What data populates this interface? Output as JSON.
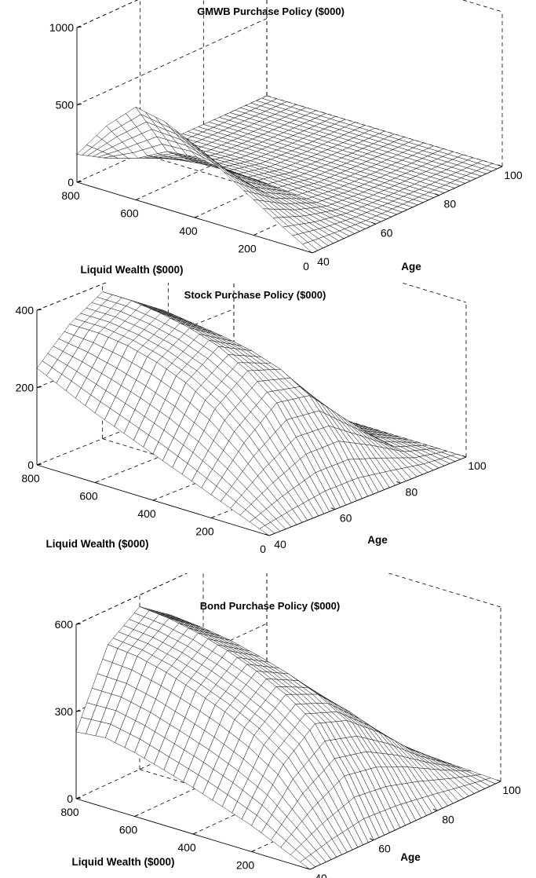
{
  "chart_data": [
    {
      "type": "surface",
      "title": "GMWB Purchase  Policy ($000)",
      "xlabel": "Liquid Wealth ($000)",
      "ylabel": "Age",
      "x_ticks": [
        "800",
        "600",
        "400",
        "200",
        "0"
      ],
      "y_ticks": [
        "40",
        "60",
        "80",
        "100"
      ],
      "z_ticks": [
        "0",
        "500",
        "1000"
      ],
      "xlim": [
        0,
        800
      ],
      "ylim": [
        40,
        100
      ],
      "zlim": [
        0,
        1000
      ],
      "grid": true,
      "wealth": [
        800,
        700,
        600,
        500,
        400,
        300,
        200,
        100,
        0
      ],
      "age": [
        40,
        50,
        60,
        70,
        80,
        90,
        100
      ],
      "z": [
        [
          180,
          60,
          12,
          3,
          1,
          0,
          0
        ],
        [
          420,
          120,
          25,
          6,
          1,
          0,
          0
        ],
        [
          600,
          220,
          50,
          10,
          2,
          0,
          0
        ],
        [
          560,
          240,
          60,
          12,
          2,
          0,
          0
        ],
        [
          470,
          210,
          55,
          10,
          2,
          0,
          0
        ],
        [
          350,
          160,
          40,
          8,
          1,
          0,
          0
        ],
        [
          230,
          110,
          25,
          5,
          1,
          0,
          0
        ],
        [
          110,
          50,
          12,
          3,
          0,
          0,
          0
        ],
        [
          0,
          0,
          0,
          0,
          0,
          0,
          0
        ]
      ]
    },
    {
      "type": "surface",
      "title": "Stock Purchase Policy ($000)",
      "xlabel": "Liquid Wealth ($000)",
      "ylabel": "Age",
      "x_ticks": [
        "800",
        "600",
        "400",
        "200",
        "0"
      ],
      "y_ticks": [
        "40",
        "60",
        "80",
        "100"
      ],
      "z_ticks": [
        "0",
        "200",
        "400"
      ],
      "xlim": [
        0,
        800
      ],
      "ylim": [
        40,
        100
      ],
      "zlim": [
        0,
        400
      ],
      "grid": true,
      "wealth": [
        800,
        700,
        600,
        500,
        400,
        300,
        200,
        100,
        0
      ],
      "age": [
        40,
        50,
        60,
        70,
        80,
        90,
        100
      ],
      "z": [
        [
          250,
          330,
          380,
          320,
          180,
          60,
          0
        ],
        [
          215,
          330,
          380,
          320,
          180,
          60,
          0
        ],
        [
          180,
          320,
          370,
          310,
          175,
          60,
          0
        ],
        [
          150,
          300,
          355,
          300,
          170,
          55,
          0
        ],
        [
          120,
          270,
          330,
          285,
          160,
          50,
          0
        ],
        [
          90,
          225,
          290,
          260,
          150,
          45,
          0
        ],
        [
          60,
          160,
          230,
          215,
          125,
          40,
          0
        ],
        [
          30,
          80,
          120,
          120,
          75,
          25,
          0
        ],
        [
          0,
          0,
          0,
          0,
          0,
          0,
          0
        ]
      ]
    },
    {
      "type": "surface",
      "title": "Bond Purchase Policy  ($000)",
      "xlabel": "Liquid Wealth ($000)",
      "ylabel": "Age",
      "x_ticks": [
        "800",
        "600",
        "400",
        "200",
        "0"
      ],
      "y_ticks": [
        "40",
        "60",
        "80",
        "100"
      ],
      "z_ticks": [
        "0",
        "300",
        "600"
      ],
      "xlim": [
        0,
        800
      ],
      "ylim": [
        40,
        100
      ],
      "zlim": [
        0,
        600
      ],
      "grid": true,
      "wealth": [
        800,
        700,
        600,
        500,
        400,
        300,
        200,
        100,
        0
      ],
      "age": [
        40,
        50,
        60,
        70,
        80,
        90,
        100
      ],
      "z": [
        [
          230,
          480,
          560,
          480,
          330,
          160,
          10
        ],
        [
          240,
          470,
          550,
          470,
          320,
          155,
          10
        ],
        [
          220,
          445,
          530,
          455,
          310,
          150,
          10
        ],
        [
          190,
          410,
          500,
          430,
          295,
          140,
          10
        ],
        [
          160,
          370,
          460,
          400,
          275,
          130,
          10
        ],
        [
          125,
          320,
          410,
          360,
          250,
          120,
          10
        ],
        [
          90,
          250,
          340,
          300,
          210,
          100,
          10
        ],
        [
          45,
          130,
          190,
          170,
          120,
          60,
          5
        ],
        [
          0,
          0,
          0,
          0,
          0,
          0,
          0
        ]
      ]
    }
  ]
}
